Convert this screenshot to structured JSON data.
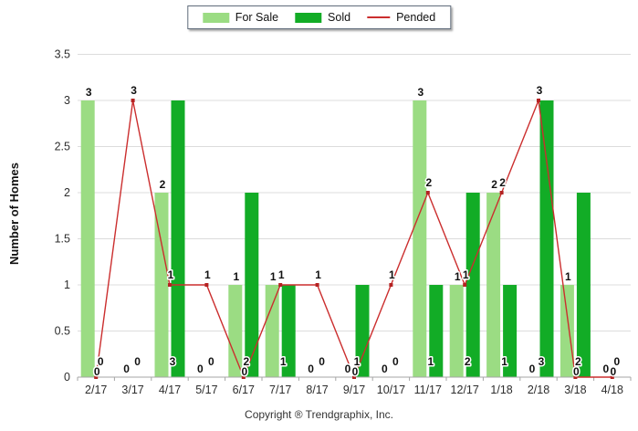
{
  "legend": {
    "items": [
      {
        "label": "For Sale",
        "color": "#9bdc83",
        "type": "bar"
      },
      {
        "label": "Sold",
        "color": "#12ac26",
        "type": "bar"
      },
      {
        "label": "Pended",
        "color": "#cb2e2e",
        "type": "line"
      }
    ]
  },
  "chart_data": {
    "type": "bar",
    "categories": [
      "2/17",
      "3/17",
      "4/17",
      "5/17",
      "6/17",
      "7/17",
      "8/17",
      "9/17",
      "10/17",
      "11/17",
      "12/17",
      "1/18",
      "2/18",
      "3/18",
      "4/18"
    ],
    "series": [
      {
        "name": "For Sale",
        "type": "bar",
        "color": "#9bdc83",
        "values": [
          3,
          0,
          2,
          0,
          1,
          1,
          0,
          0,
          0,
          3,
          1,
          2,
          0,
          1,
          0
        ]
      },
      {
        "name": "Sold",
        "type": "bar",
        "color": "#12ac26",
        "values": [
          0,
          0,
          3,
          0,
          2,
          1,
          0,
          1,
          0,
          1,
          2,
          1,
          3,
          2,
          0
        ]
      },
      {
        "name": "Pended",
        "type": "line",
        "color": "#cb2e2e",
        "marker_color": "#b42222",
        "values": [
          0,
          3,
          1,
          1,
          0,
          1,
          1,
          0,
          1,
          2,
          1,
          2,
          3,
          0,
          0
        ]
      }
    ],
    "title": "",
    "xlabel": "",
    "ylabel": "Number of Homes",
    "ylim": [
      0,
      3.5
    ],
    "ytick_step": 0.5,
    "yticks": [
      0,
      0.5,
      1,
      1.5,
      2,
      2.5,
      3,
      3.5
    ],
    "grid": true,
    "grid_color": "#dcdcdc",
    "axis_color": "#a6a6a6",
    "tick_label_color": "#2d2d2d",
    "value_label_color": "#111111",
    "legend_position": "top-center",
    "data_labels": true
  },
  "footer": {
    "copyright": "Copyright ® Trendgraphix, Inc."
  }
}
